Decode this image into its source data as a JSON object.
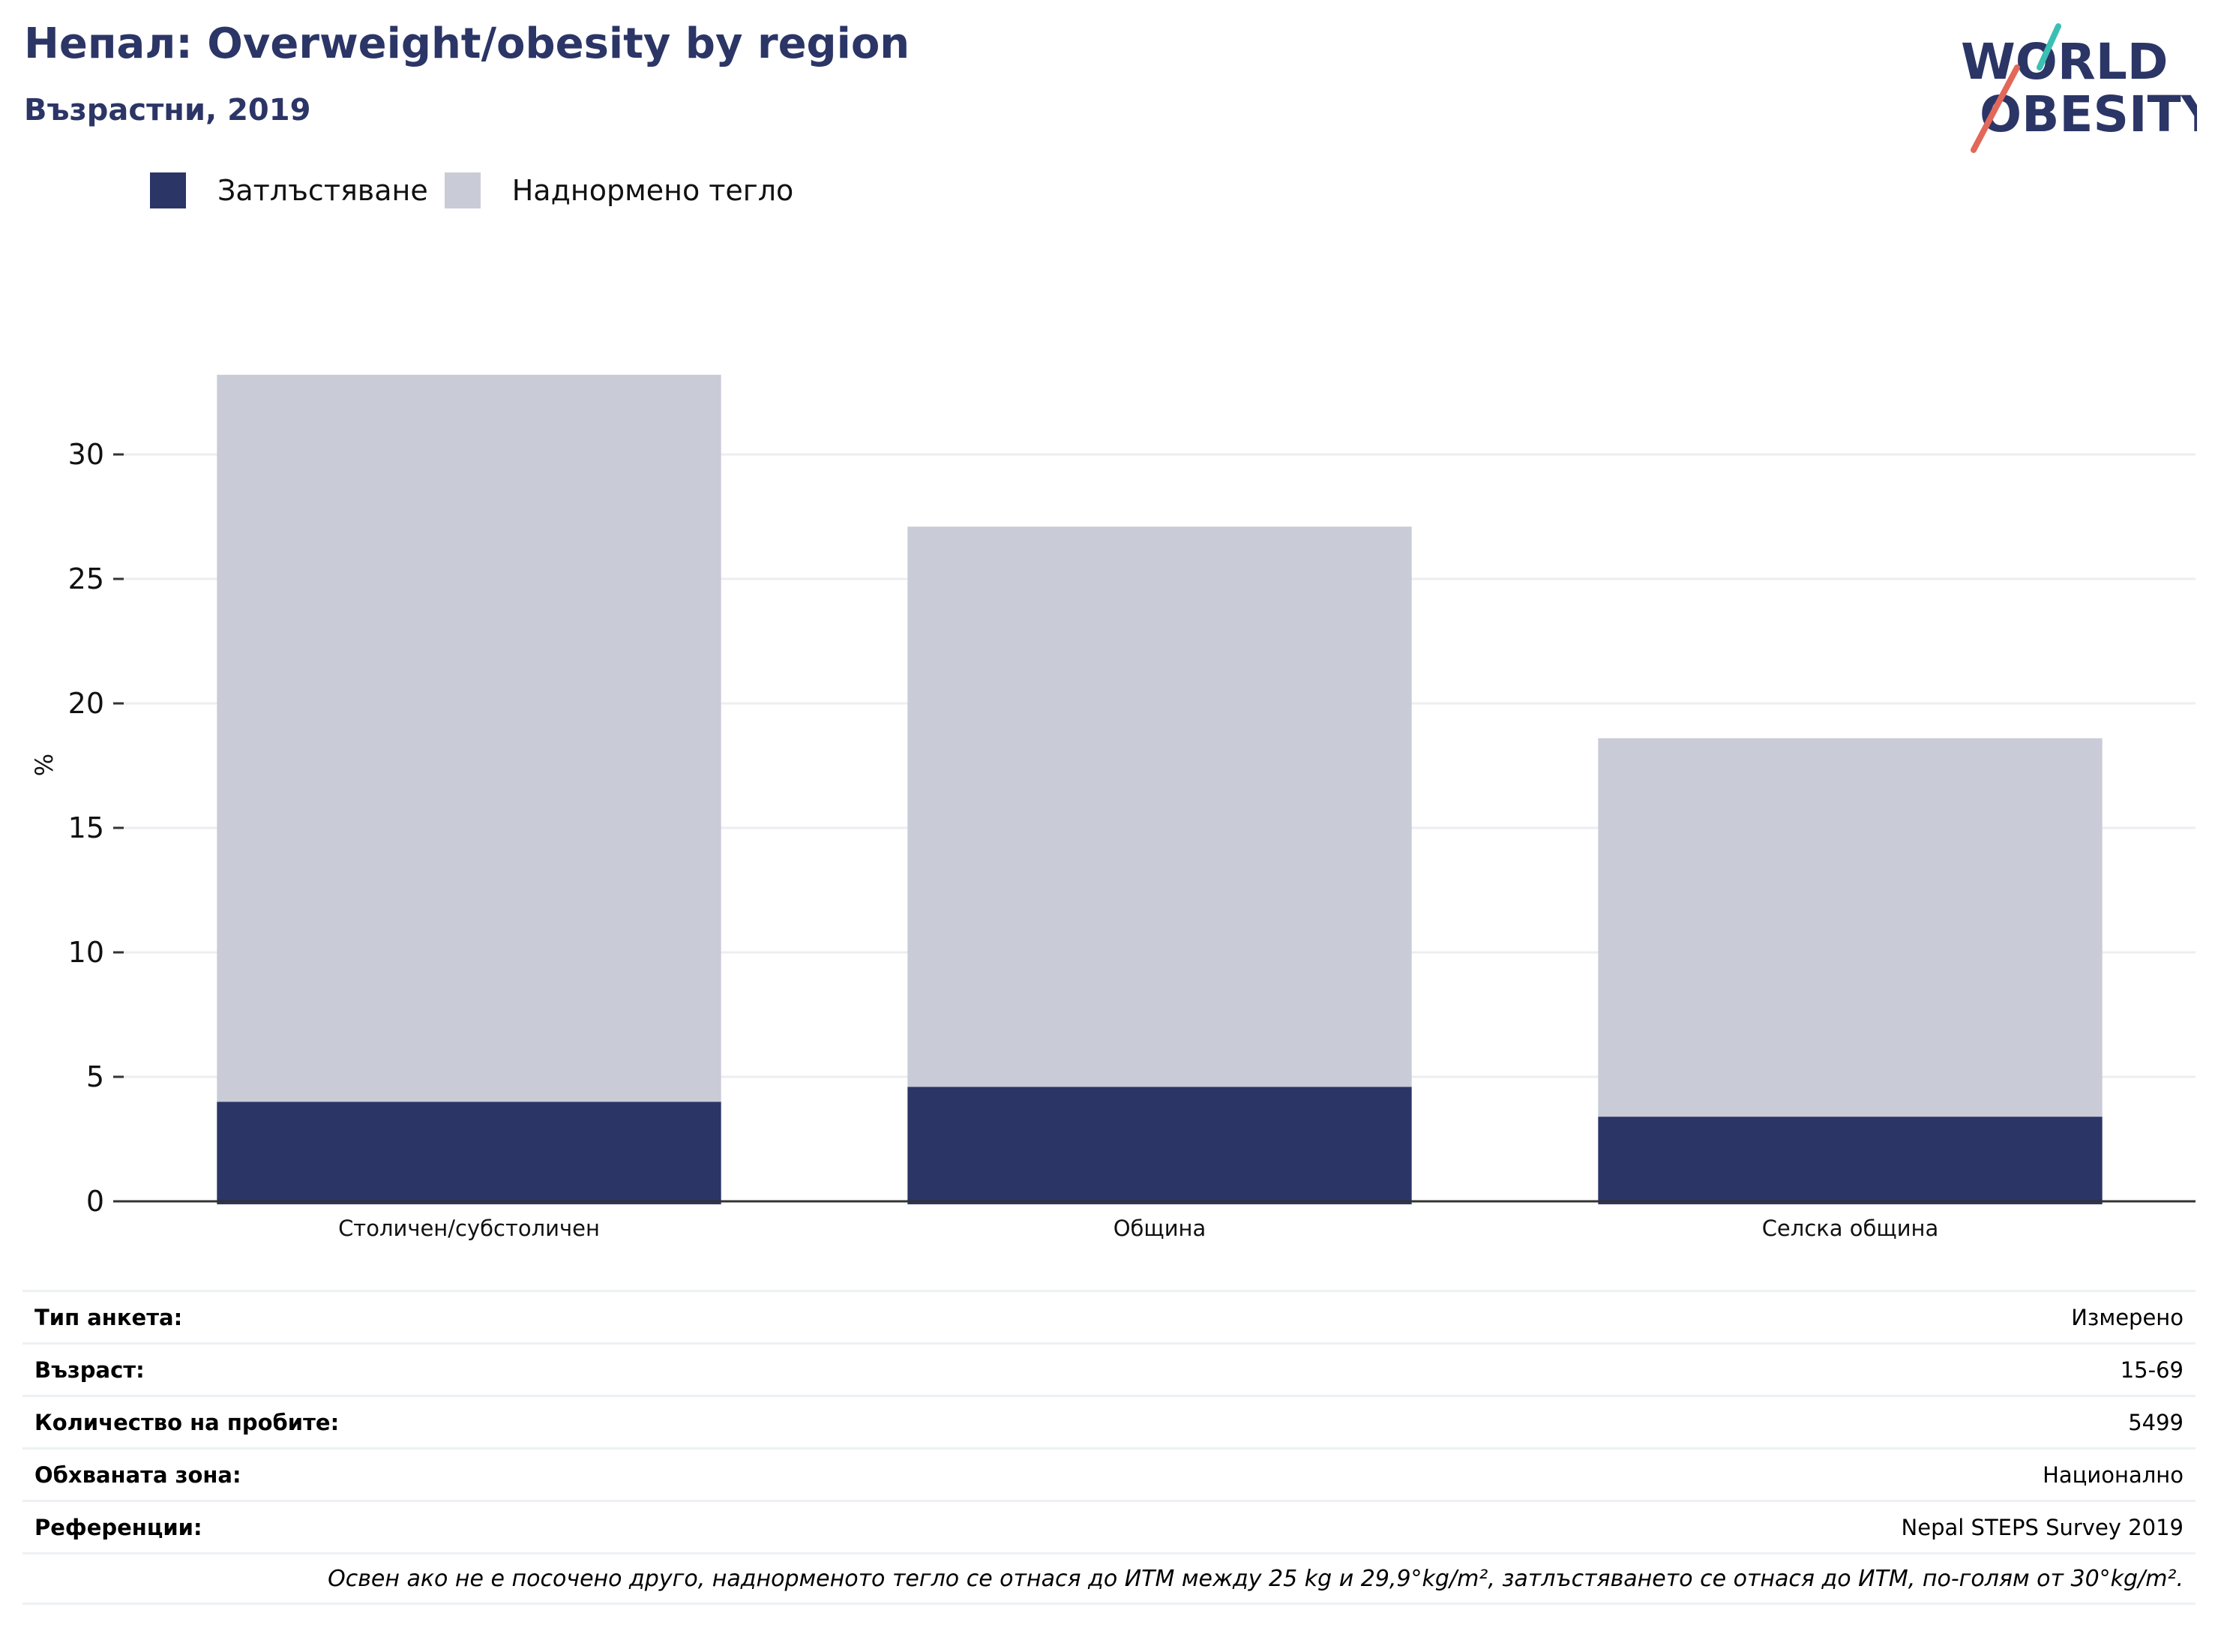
{
  "title": "Непал: Overweight/obesity by region",
  "subtitle": "Възрастни, 2019",
  "logo": {
    "line1": "WORLD",
    "line2": "OBESITY",
    "accent_colors": [
      "#3bbfb3",
      "#e2685a"
    ],
    "text_color": "#2b3566"
  },
  "colors": {
    "obesity": "#2b3566",
    "overweight": "#c9cbd7",
    "title": "#2b3566"
  },
  "chart_data": {
    "type": "bar",
    "stacked": true,
    "categories": [
      "Столичен/субстоличен",
      "Община",
      "Селска община"
    ],
    "series": [
      {
        "name": "Затлъстяване",
        "values": [
          4.0,
          4.6,
          3.4
        ]
      },
      {
        "name": "Наднормено тегло",
        "values": [
          29.2,
          22.5,
          15.2
        ]
      }
    ],
    "ylabel": "%",
    "xlabel": "",
    "ylim": [
      0,
      35
    ],
    "yticks": [
      0,
      5,
      10,
      15,
      20,
      25,
      30
    ],
    "legend_position": "top-left",
    "grid": true
  },
  "info": {
    "rows": [
      {
        "label": "Тип анкета:",
        "value": "Измерено"
      },
      {
        "label": "Възраст:",
        "value": "15-69"
      },
      {
        "label": "Количество на пробите:",
        "value": "5499"
      },
      {
        "label": "Обхваната зона:",
        "value": "Национално"
      },
      {
        "label": "Референции:",
        "value": "Nepal STEPS Survey 2019"
      }
    ],
    "note": "Освен ако не е посочено друго, наднорменото тегло се отнася до ИТМ между 25 kg и 29,9°kg/m², затлъстяването се отнася до ИТМ, по-голям от 30°kg/m²."
  }
}
